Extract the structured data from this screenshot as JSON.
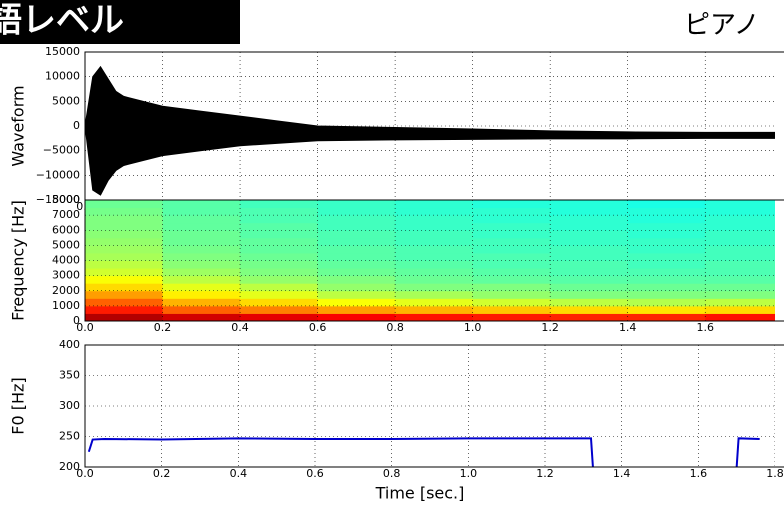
{
  "header": {
    "badge": "語レベル",
    "label": "ピアノ"
  },
  "chart_data": [
    {
      "type": "area",
      "ylabel": "Waveform",
      "color": "#000000",
      "grid": true,
      "xlim": [
        0,
        1.78
      ],
      "ylim": [
        -15000,
        15000
      ],
      "xticks": [
        {
          "value": 0,
          "label": "0.0"
        },
        0.2,
        0.4,
        0.6,
        0.8,
        {
          "value": 1,
          "label": "1.0"
        },
        1.2,
        1.4,
        1.6
      ],
      "yticks": [
        {
          "value": -15000,
          "label": "−15000"
        },
        {
          "value": -10000,
          "label": "−10000"
        },
        {
          "value": -5000,
          "label": "−5000"
        },
        0,
        5000,
        10000,
        15000
      ],
      "x": [
        0,
        0.02,
        0.04,
        0.06,
        0.08,
        0.1,
        0.15,
        0.2,
        0.25,
        0.3,
        0.4,
        0.5,
        0.6,
        0.8,
        1.0,
        1.2,
        1.4,
        1.6,
        1.78
      ],
      "series": [
        {
          "values": [
            0,
            10000,
            12000,
            9500,
            7000,
            6000,
            5000,
            4000,
            3500,
            3000,
            2000,
            1000,
            0,
            -300,
            -600,
            -1000,
            -1200,
            -1300,
            -1300
          ]
        },
        {
          "values": [
            0,
            -13000,
            -14000,
            -11000,
            -9000,
            -8000,
            -7000,
            -6000,
            -5500,
            -5000,
            -4000,
            -3500,
            -3000,
            -2800,
            -2700,
            -2600,
            -2600,
            -2500,
            -2500
          ]
        }
      ]
    },
    {
      "type": "heatmap",
      "ylabel": "Frequency [Hz]",
      "colormap": "jet",
      "grid": true,
      "xlim": [
        0,
        1.78
      ],
      "ylim": [
        0,
        8000
      ],
      "xticks": [
        {
          "value": 0,
          "label": "0.0"
        },
        0.2,
        0.4,
        0.6,
        0.8,
        {
          "value": 1,
          "label": "1.0"
        },
        1.2,
        1.4,
        1.6
      ],
      "yticks": [
        0,
        1000,
        2000,
        3000,
        4000,
        5000,
        6000,
        7000,
        8000
      ],
      "xbins": [
        0,
        0.2,
        0.4,
        0.6,
        0.8,
        1.0,
        1.2,
        1.4,
        1.6,
        1.8
      ],
      "ybins": [
        0,
        500,
        1000,
        1500,
        2000,
        2500,
        3000,
        3500,
        4000,
        4500,
        5000,
        5500,
        6000,
        6500,
        7000,
        7500,
        8000
      ],
      "z": [
        [
          0.95,
          0.92,
          0.9,
          0.88,
          0.86,
          0.85,
          0.84,
          0.84,
          0.86
        ],
        [
          0.85,
          0.78,
          0.75,
          0.72,
          0.7,
          0.68,
          0.66,
          0.65,
          0.66
        ],
        [
          0.78,
          0.7,
          0.66,
          0.62,
          0.6,
          0.58,
          0.56,
          0.55,
          0.56
        ],
        [
          0.72,
          0.64,
          0.6,
          0.56,
          0.54,
          0.52,
          0.5,
          0.5,
          0.5
        ],
        [
          0.66,
          0.6,
          0.56,
          0.52,
          0.5,
          0.5,
          0.48,
          0.48,
          0.48
        ],
        [
          0.62,
          0.56,
          0.52,
          0.5,
          0.48,
          0.47,
          0.46,
          0.46,
          0.46
        ],
        [
          0.58,
          0.53,
          0.5,
          0.48,
          0.47,
          0.46,
          0.45,
          0.45,
          0.45
        ],
        [
          0.56,
          0.51,
          0.49,
          0.47,
          0.46,
          0.45,
          0.45,
          0.44,
          0.45
        ],
        [
          0.54,
          0.5,
          0.48,
          0.46,
          0.45,
          0.45,
          0.44,
          0.44,
          0.44
        ],
        [
          0.53,
          0.49,
          0.47,
          0.46,
          0.45,
          0.44,
          0.44,
          0.43,
          0.44
        ],
        [
          0.52,
          0.48,
          0.47,
          0.45,
          0.44,
          0.44,
          0.43,
          0.43,
          0.43
        ],
        [
          0.51,
          0.48,
          0.46,
          0.45,
          0.44,
          0.43,
          0.43,
          0.42,
          0.43
        ],
        [
          0.5,
          0.47,
          0.46,
          0.44,
          0.43,
          0.43,
          0.42,
          0.42,
          0.42
        ],
        [
          0.5,
          0.47,
          0.45,
          0.44,
          0.43,
          0.42,
          0.42,
          0.41,
          0.42
        ],
        [
          0.49,
          0.46,
          0.45,
          0.43,
          0.42,
          0.42,
          0.41,
          0.41,
          0.41
        ],
        [
          0.48,
          0.46,
          0.44,
          0.43,
          0.42,
          0.41,
          0.41,
          0.4,
          0.41
        ]
      ]
    },
    {
      "type": "line",
      "ylabel": "F0 [Hz]",
      "xlabel": "Time [sec.]",
      "color": "#0000cc",
      "grid": true,
      "xlim": [
        0,
        1.8
      ],
      "ylim": [
        200,
        400
      ],
      "xticks": [
        {
          "value": 0,
          "label": "0.0"
        },
        0.2,
        0.4,
        0.6,
        0.8,
        {
          "value": 1,
          "label": "1.0"
        },
        1.2,
        1.4,
        1.6,
        1.8
      ],
      "yticks": [
        200,
        250,
        300,
        350,
        400
      ],
      "x": [
        0.01,
        0.02,
        0.05,
        0.2,
        0.4,
        0.6,
        0.8,
        1.0,
        1.2,
        1.32,
        1.325,
        1.5,
        1.7,
        1.705,
        1.76
      ],
      "values": [
        225,
        245,
        246,
        245,
        247,
        246,
        246,
        247,
        247,
        247,
        200,
        null,
        200,
        247,
        246
      ]
    }
  ]
}
